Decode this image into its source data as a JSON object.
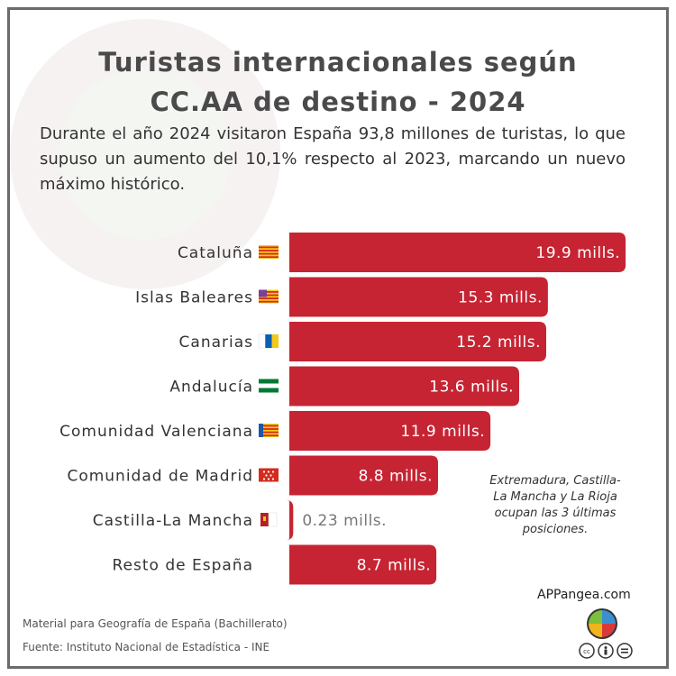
{
  "title_line1": "Turistas internacionales según",
  "title_line2": "CC.AA de destino - 2024",
  "subtitle": "Durante el año 2024 visitaron España 93,8 millones de turistas, lo que supuso un aumento del 10,1% respecto al 2023, marcando un nuevo máximo histórico.",
  "note": "Extremadura, Castilla-La Mancha y La Rioja ocupan las 3 últimas posiciones.",
  "website": "APPangea.com",
  "footer_material": "Material para Geografía de España (Bachillerato)",
  "footer_source": "Fuente: Instituto Nacional de Estadística - INE",
  "colors": {
    "bar": "#c62433",
    "title": "#4a4a4a",
    "frame": "#6b6b6b"
  },
  "chart_data": {
    "type": "bar",
    "orientation": "horizontal",
    "categories": [
      "Cataluña",
      "Islas Baleares",
      "Canarias",
      "Andalucía",
      "Comunidad Valenciana",
      "Comunidad de Madrid",
      "Castilla-La Mancha",
      "Resto de España"
    ],
    "values": [
      19.9,
      15.3,
      15.2,
      13.6,
      11.9,
      8.8,
      0.23,
      8.7
    ],
    "data_labels": [
      "19.9 mills.",
      "15.3 mills.",
      "15.2 mills.",
      "13.6 mills.",
      "11.9 mills.",
      "8.8 mills.",
      "0.23 mills.",
      "8.7 mills."
    ],
    "flags": [
      "catalonia-flag-icon",
      "balearic-flag-icon",
      "canary-flag-icon",
      "andalusia-flag-icon",
      "valencia-flag-icon",
      "madrid-flag-icon",
      "castilla-la-mancha-flag-icon",
      ""
    ],
    "xlim": [
      0,
      20
    ],
    "grid": false,
    "legend": "none"
  }
}
